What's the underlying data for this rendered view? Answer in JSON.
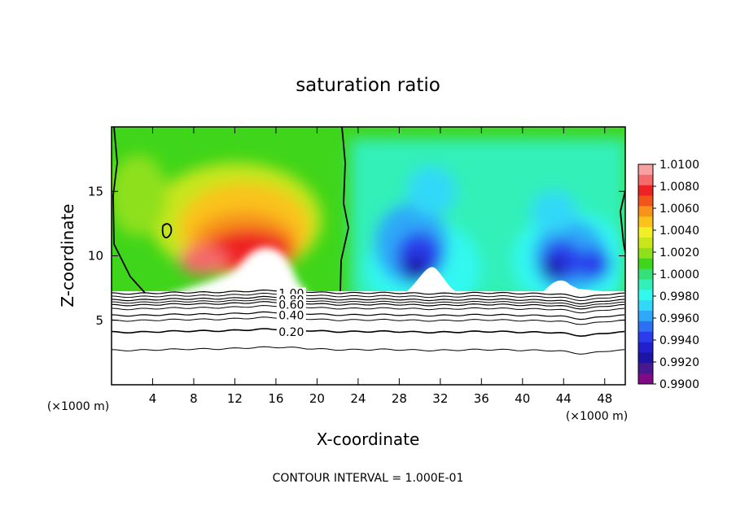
{
  "chart_data": {
    "type": "heatmap",
    "title": "saturation ratio",
    "xlabel": "X-coordinate",
    "ylabel": "Z-coordinate",
    "x_unit": "(×1000 m)",
    "y_unit": "(×1000 m)",
    "xlim": [
      0,
      50
    ],
    "ylim": [
      0,
      20
    ],
    "x_ticks": [
      4,
      8,
      12,
      16,
      20,
      24,
      28,
      32,
      36,
      40,
      44,
      48
    ],
    "y_ticks": [
      5,
      10,
      15
    ],
    "footer": "CONTOUR INTERVAL = 1.000E-01",
    "colorbar": {
      "labels": [
        "1.0100",
        "1.0080",
        "1.0060",
        "1.0040",
        "1.0020",
        "1.0000",
        "0.9980",
        "0.9960",
        "0.9940",
        "0.9920",
        "0.9900"
      ],
      "colors": [
        "#F9A0A0",
        "#F46B6B",
        "#EE2222",
        "#F0551A",
        "#F7921A",
        "#FAC21A",
        "#F2EF26",
        "#C8E61A",
        "#8EE01A",
        "#3FD51A",
        "#33E07A",
        "#33F0B8",
        "#33F8F0",
        "#33D8F8",
        "#2FA8F8",
        "#2E70F4",
        "#2A3CEC",
        "#2020CC",
        "#1C14A6",
        "#481890",
        "#800A86"
      ]
    },
    "contour_lines": [
      {
        "label": "1.00",
        "z": 7.1
      },
      {
        "label": "0.80",
        "z": 6.6
      },
      {
        "label": "0.60",
        "z": 6.2
      },
      {
        "label": "0.40",
        "z": 5.4
      },
      {
        "label": "0.20",
        "z": 4.1
      }
    ],
    "extra_contours_z": [
      6.85,
      6.4,
      5.9,
      5.0,
      2.7
    ]
  }
}
